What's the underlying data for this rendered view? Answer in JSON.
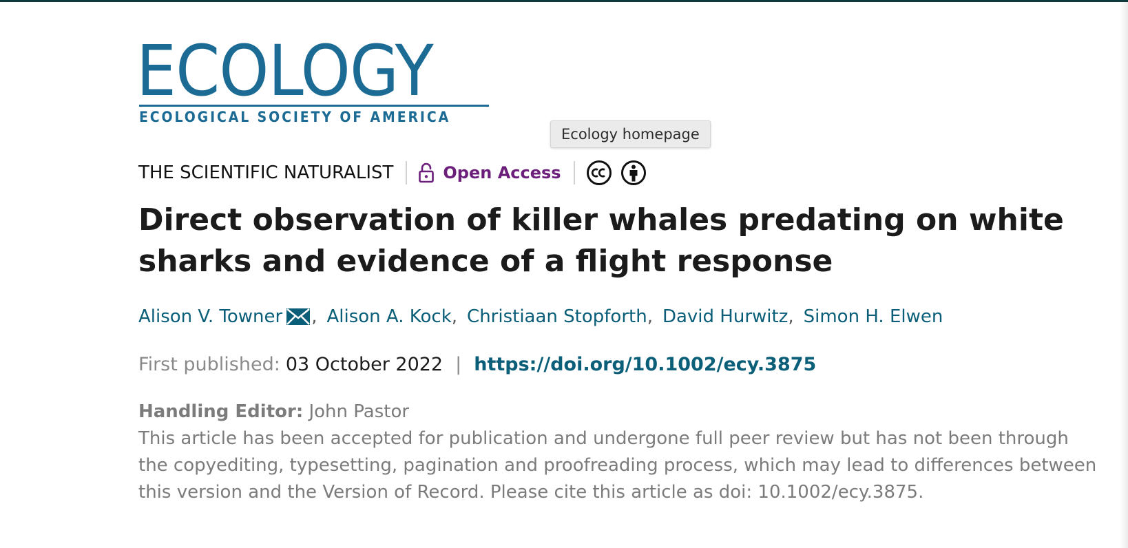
{
  "journal": {
    "logo_word": "ECOLOGY",
    "logo_sub": "ECOLOGICAL SOCIETY OF AMERICA",
    "tooltip": "Ecology homepage",
    "brand_color": "#1c6b94"
  },
  "article": {
    "section": "THE SCIENTIFIC NATURALIST",
    "access_label": "Open Access",
    "access_color": "#6b1e7a",
    "license_icons": [
      "cc-icon",
      "by-icon"
    ],
    "title": "Direct observation of killer whales predating on white sharks and evidence of a flight response",
    "authors": [
      {
        "name": "Alison V. Towner",
        "corresponding": true
      },
      {
        "name": "Alison A. Kock"
      },
      {
        "name": "Christiaan Stopforth"
      },
      {
        "name": "David Hurwitz"
      },
      {
        "name": "Simon H. Elwen"
      }
    ],
    "author_separator": ",",
    "published_label": "First published:",
    "published_date": "03 October 2022",
    "pipe": "|",
    "doi": "https://doi.org/10.1002/ecy.3875",
    "editor_label": "Handling Editor:",
    "editor_name": "John Pastor",
    "notice": "This article has been accepted for publication and undergone full peer review but has not been through the copyediting, typesetting, pagination and proofreading process, which may lead to differences between this version and the Version of Record. Please cite this article as doi: 10.1002/ecy.3875.",
    "link_color": "#0a5e78"
  }
}
